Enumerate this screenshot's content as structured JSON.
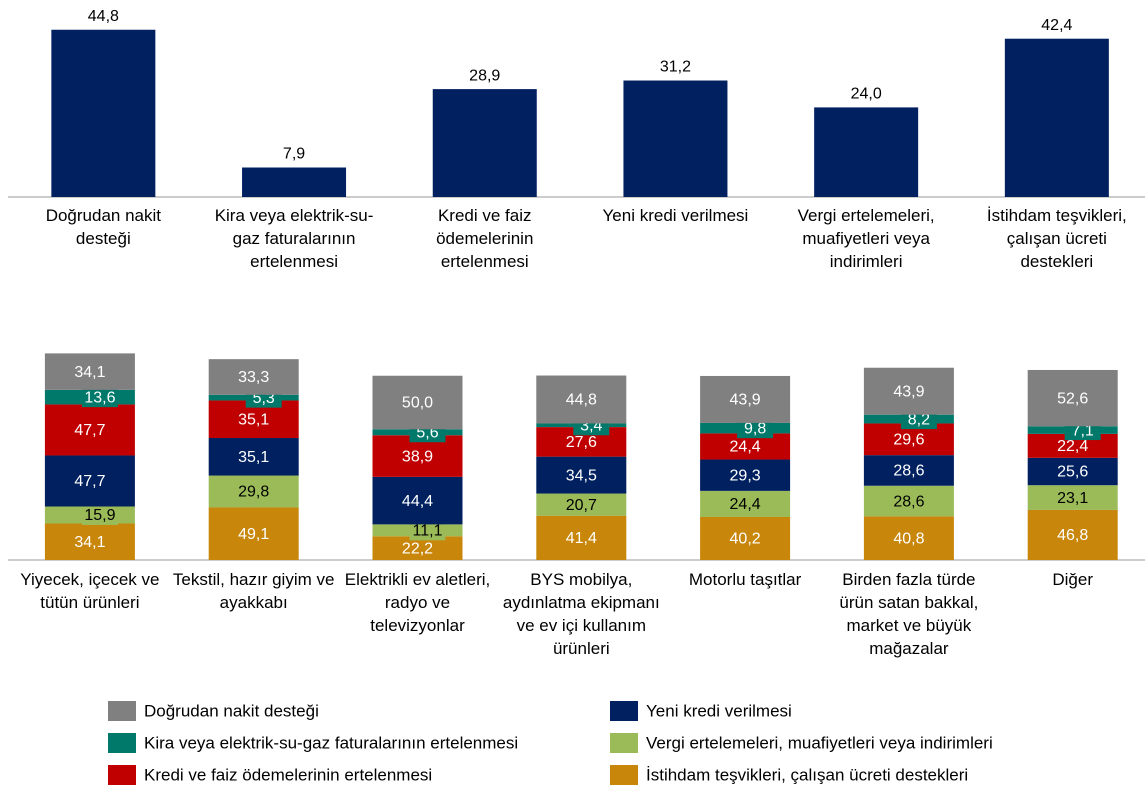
{
  "chart_data": [
    {
      "type": "bar",
      "categories": [
        "Doğrudan nakit desteği",
        "Kira veya elektrik-su-gaz faturalarının ertelenmesi",
        "Kredi ve faiz ödemelerinin ertelenmesi",
        "Yeni kredi verilmesi",
        "Vergi ertelemeleri, muafiyetleri veya indirimleri",
        "İstihdam teşvikleri, çalışan ücreti destekleri"
      ],
      "values": [
        44.8,
        7.9,
        28.9,
        31.2,
        24.0,
        42.4
      ],
      "value_labels": [
        "44,8",
        "7,9",
        "28,9",
        "31,2",
        "24,0",
        "42,4"
      ],
      "color": "#002060",
      "ylim": [
        0,
        45
      ]
    },
    {
      "type": "stacked_bar",
      "categories": [
        "Yiyecek, içecek ve tütün ürünleri",
        "Tekstil, hazır giyim ve ayakkabı",
        "Elektrikli ev aletleri, radyo ve televizyonlar",
        "BYS mobilya, aydınlatma ekipmanı ve ev içi kullanım ürünleri",
        "Motorlu taşıtlar",
        "Birden fazla türde ürün satan bakkal, market ve büyük mağazalar",
        "Diğer"
      ],
      "series": [
        {
          "name": "Doğrudan nakit desteği",
          "color": "#808080",
          "values": [
            34.1,
            33.3,
            50.0,
            44.8,
            43.9,
            43.9,
            52.6
          ],
          "value_labels": [
            "34,1",
            "33,3",
            "50,0",
            "44,8",
            "43,9",
            "43,9",
            "52,6"
          ]
        },
        {
          "name": "Kira veya elektrik-su-gaz faturalarının ertelenmesi",
          "color": "#00796b",
          "values": [
            13.6,
            5.3,
            5.6,
            3.4,
            9.8,
            8.2,
            7.1
          ],
          "value_labels": [
            "13,6",
            "5,3",
            "5,6",
            "3,4",
            "9,8",
            "8,2",
            "7,1"
          ]
        },
        {
          "name": "Kredi ve faiz ödemelerinin ertelenmesi",
          "color": "#c00000",
          "values": [
            47.7,
            35.1,
            38.9,
            27.6,
            24.4,
            29.6,
            22.4
          ],
          "value_labels": [
            "47,7",
            "35,1",
            "38,9",
            "27,6",
            "24,4",
            "29,6",
            "22,4"
          ]
        },
        {
          "name": "Yeni kredi verilmesi",
          "color": "#002060",
          "values": [
            47.7,
            35.1,
            44.4,
            34.5,
            29.3,
            28.6,
            25.6
          ],
          "value_labels": [
            "47,7",
            "35,1",
            "44,4",
            "34,5",
            "29,3",
            "28,6",
            "25,6"
          ]
        },
        {
          "name": "Vergi ertelemeleri, muafiyetleri veya indirimleri",
          "color": "#9bbb59",
          "values": [
            15.9,
            29.8,
            11.1,
            20.7,
            24.4,
            28.6,
            23.1
          ],
          "value_labels": [
            "15,9",
            "29,8",
            "11,1",
            "20,7",
            "24,4",
            "28,6",
            "23,1"
          ]
        },
        {
          "name": "İstihdam teşvikleri, çalışan ücreti destekleri",
          "color": "#c8860a",
          "values": [
            34.1,
            49.1,
            22.2,
            41.4,
            40.2,
            40.8,
            46.8
          ],
          "value_labels": [
            "34,1",
            "49,1",
            "22,2",
            "41,4",
            "40,2",
            "40,8",
            "46,8"
          ]
        }
      ],
      "ylim": [
        0,
        200
      ]
    }
  ]
}
